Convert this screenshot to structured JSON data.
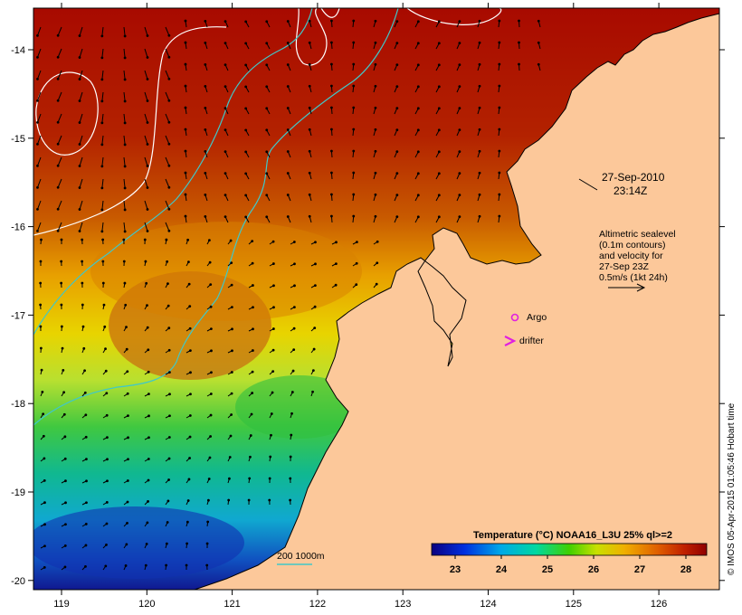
{
  "map": {
    "date_label": "27-Sep-2010",
    "time_label": "23:14Z",
    "altimetry": {
      "line1": "Altimetric sealevel",
      "line2": "(0.1m contours)",
      "line3": "and velocity for",
      "line4": "27-Sep 23Z",
      "line5": "0.5m/s (1kt 24h)"
    },
    "legend": {
      "argo_label": "Argo",
      "drifter_label": "drifter",
      "bathy_label": "200  1000m"
    },
    "colorbar": {
      "title": "Temperature (°C) NOAA16_L3U 25% ql>=2",
      "ticks": [
        "23",
        "24",
        "25",
        "26",
        "27",
        "28"
      ]
    },
    "credit": "© IMOS 05-Apr-2015 01:05:46 Hobart time",
    "axes": {
      "lon_ticks": [
        "119",
        "120",
        "121",
        "122",
        "123",
        "124",
        "125",
        "126"
      ],
      "lat_ticks": [
        "-14",
        "-15",
        "-16",
        "-17",
        "-18",
        "-19",
        "-20"
      ]
    },
    "colors": {
      "land": "#fcc89a",
      "contour": "#ffffff",
      "bathy": "#40c8c8",
      "argo": "#e020e0",
      "drifter": "#e020e0"
    }
  }
}
